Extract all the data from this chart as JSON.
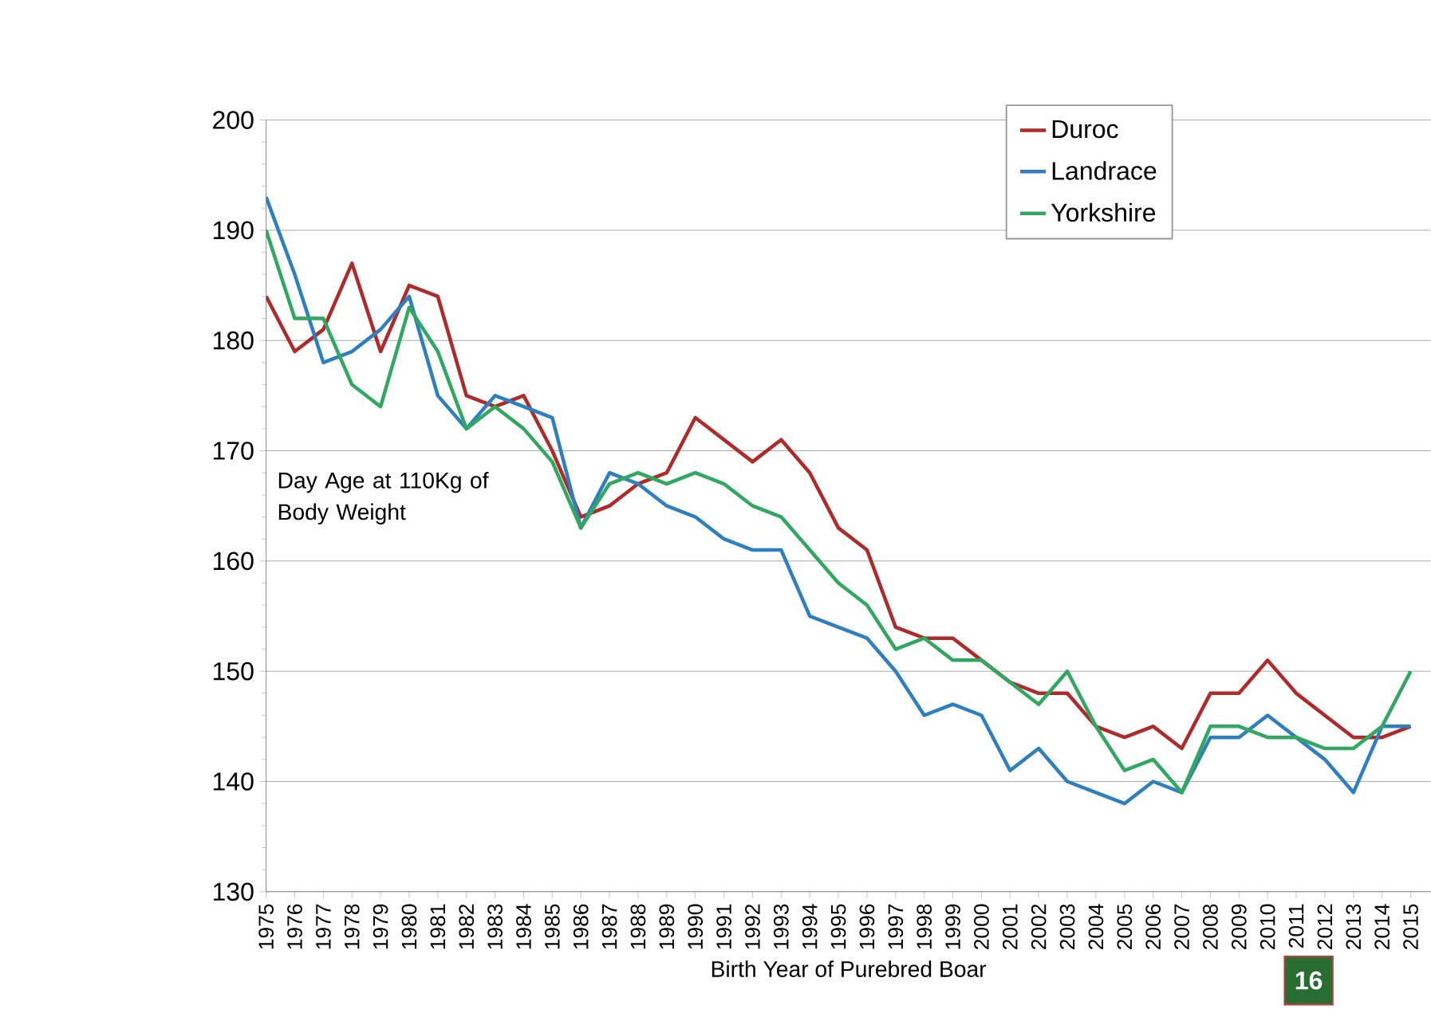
{
  "chart_data": {
    "type": "line",
    "xlabel": "Birth Year of Purebred Boar",
    "ylabel": "Day Age at 110Kg of Body Weight",
    "categories": [
      "1975",
      "1976",
      "1977",
      "1978",
      "1979",
      "1980",
      "1981",
      "1982",
      "1983",
      "1984",
      "1985",
      "1986",
      "1987",
      "1988",
      "1989",
      "1990",
      "1991",
      "1992",
      "1993",
      "1994",
      "1995",
      "1996",
      "1997",
      "1998",
      "1999",
      "2000",
      "2001",
      "2002",
      "2003",
      "2004",
      "2005",
      "2006",
      "2007",
      "2008",
      "2009",
      "2010",
      "2011",
      "2012",
      "2013",
      "2014",
      "2015"
    ],
    "series": [
      {
        "name": "Duroc",
        "color": "#b02a2a",
        "values": [
          184,
          179,
          181,
          187,
          179,
          185,
          184,
          175,
          174,
          175,
          170,
          164,
          165,
          167,
          168,
          173,
          171,
          169,
          171,
          168,
          163,
          161,
          154,
          153,
          153,
          151,
          149,
          148,
          148,
          145,
          144,
          145,
          143,
          148,
          148,
          151,
          148,
          146,
          144,
          144,
          145
        ]
      },
      {
        "name": "Landrace",
        "color": "#2e7fbf",
        "values": [
          193,
          186,
          178,
          179,
          181,
          184,
          175,
          172,
          175,
          174,
          173,
          163,
          168,
          167,
          165,
          164,
          162,
          161,
          161,
          155,
          154,
          153,
          150,
          146,
          147,
          146,
          141,
          143,
          140,
          139,
          138,
          140,
          139,
          144,
          144,
          146,
          144,
          142,
          139,
          145,
          145
        ]
      },
      {
        "name": "Yorkshire",
        "color": "#30a860",
        "values": [
          190,
          182,
          182,
          176,
          174,
          183,
          179,
          172,
          174,
          172,
          169,
          163,
          167,
          168,
          167,
          168,
          167,
          165,
          164,
          161,
          158,
          156,
          152,
          153,
          151,
          151,
          149,
          147,
          150,
          145,
          141,
          142,
          139,
          145,
          145,
          144,
          144,
          143,
          143,
          145,
          150
        ]
      }
    ],
    "ylim": [
      130,
      200
    ],
    "yticks": [
      130,
      140,
      150,
      160,
      170,
      180,
      190,
      200
    ],
    "grid": "y",
    "legend": "top",
    "marker": "none",
    "line_style": "solid",
    "annotations": [
      "16"
    ]
  }
}
